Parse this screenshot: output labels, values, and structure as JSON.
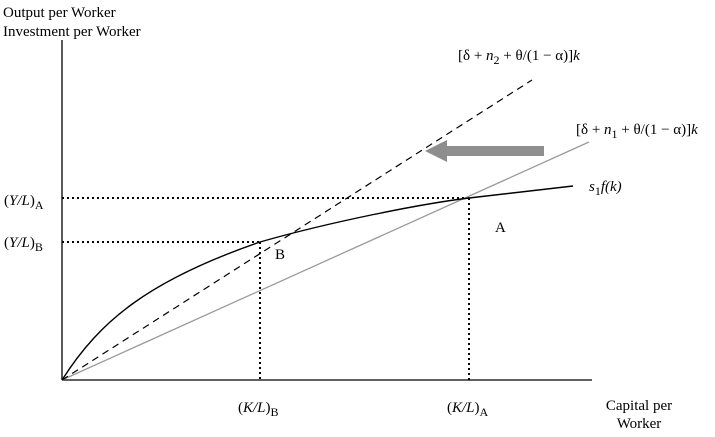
{
  "y_axis_title": {
    "line1": "Output per Worker",
    "line2": "Investment per Worker"
  },
  "x_axis_title": {
    "line1": "Capital per",
    "line2": "Worker"
  },
  "curves": {
    "production": {
      "s": "s",
      "sub": "1",
      "tail": "f(k)"
    },
    "break_even_2": {
      "pre": "[δ + ",
      "n": "n",
      "sub": "2",
      "mid": " + θ/(1 − α)]",
      "k": "k"
    },
    "break_even_1": {
      "pre": "[δ + ",
      "n": "n",
      "sub": "1",
      "mid": " + θ/(1 − α)]",
      "k": "k"
    }
  },
  "y_ticks": {
    "A": {
      "open": "(",
      "var": "Y/L",
      "close": ")",
      "sub": "A"
    },
    "B": {
      "open": "(",
      "var": "Y/L",
      "close": ")",
      "sub": "B"
    }
  },
  "x_ticks": {
    "B": {
      "open": "(",
      "var": "K/L",
      "close": ")",
      "sub": "B"
    },
    "A": {
      "open": "(",
      "var": "K/L",
      "close": ")",
      "sub": "A"
    }
  },
  "points": {
    "A": "A",
    "B": "B"
  },
  "colors": {
    "axis": "#000000",
    "gray_line": "#9a9a9a",
    "arrow": "#8e8e8e"
  }
}
